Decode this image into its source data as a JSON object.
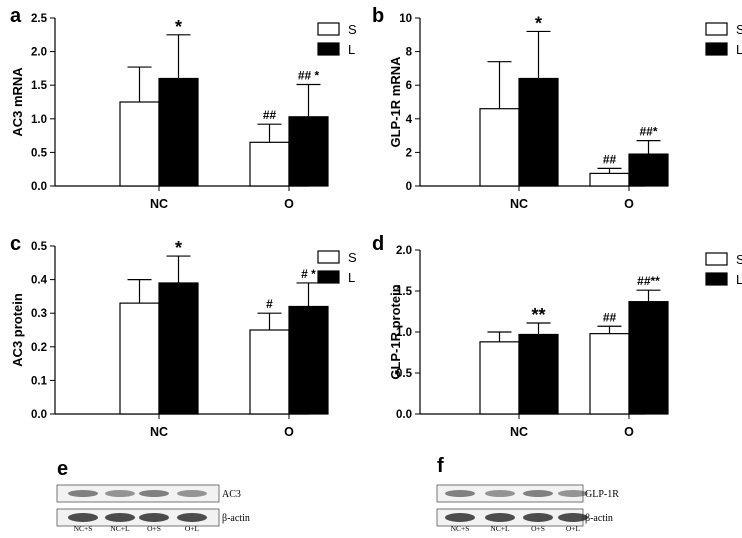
{
  "chart_data": [
    {
      "type": "bar",
      "panel": "a",
      "ylabel": "AC3 mRNA",
      "categories": [
        "NC",
        "O"
      ],
      "ylim": [
        0,
        2.5
      ],
      "yticks": [
        "0.0",
        "0.5",
        "1.0",
        "1.5",
        "2.0",
        "2.5"
      ],
      "series": [
        {
          "name": "S",
          "values": [
            1.25,
            0.65
          ],
          "errors": [
            0.52,
            0.27
          ],
          "annotations": [
            "",
            "##"
          ]
        },
        {
          "name": "L",
          "values": [
            1.6,
            1.03
          ],
          "errors": [
            0.65,
            0.48
          ],
          "annotations": [
            "*",
            "## *"
          ]
        }
      ],
      "legend": "top-right"
    },
    {
      "type": "bar",
      "panel": "b",
      "ylabel": "GLP-1R mRNA",
      "categories": [
        "NC",
        "O"
      ],
      "ylim": [
        0,
        10
      ],
      "yticks": [
        "0",
        "2",
        "4",
        "6",
        "8",
        "10"
      ],
      "series": [
        {
          "name": "S",
          "values": [
            4.6,
            0.75
          ],
          "errors": [
            2.8,
            0.3
          ],
          "annotations": [
            "",
            "##"
          ]
        },
        {
          "name": "L",
          "values": [
            6.4,
            1.9
          ],
          "errors": [
            2.8,
            0.8
          ],
          "annotations": [
            "*",
            "##*"
          ]
        }
      ],
      "legend": "top-right"
    },
    {
      "type": "bar",
      "panel": "c",
      "ylabel": "AC3 protein",
      "categories": [
        "NC",
        "O"
      ],
      "ylim": [
        0,
        0.5
      ],
      "yticks": [
        "0.0",
        "0.1",
        "0.2",
        "0.3",
        "0.4",
        "0.5"
      ],
      "series": [
        {
          "name": "S",
          "values": [
            0.33,
            0.25
          ],
          "errors": [
            0.07,
            0.05
          ],
          "annotations": [
            "",
            "#"
          ]
        },
        {
          "name": "L",
          "values": [
            0.39,
            0.32
          ],
          "errors": [
            0.08,
            0.07
          ],
          "annotations": [
            "*",
            "# *"
          ]
        }
      ],
      "legend": "top-right"
    },
    {
      "type": "bar",
      "panel": "d",
      "ylabel": "GLP-1R protein",
      "categories": [
        "NC",
        "O"
      ],
      "ylim": [
        0,
        2.0
      ],
      "yticks": [
        "0.0",
        "0.5",
        "1.0",
        "1.5",
        "2.0"
      ],
      "series": [
        {
          "name": "S",
          "values": [
            0.88,
            0.98
          ],
          "errors": [
            0.12,
            0.09
          ],
          "annotations": [
            "",
            "##"
          ]
        },
        {
          "name": "L",
          "values": [
            0.97,
            1.37
          ],
          "errors": [
            0.14,
            0.14
          ],
          "annotations": [
            "**",
            "##**"
          ]
        }
      ],
      "legend": "top-right"
    }
  ],
  "blots": [
    {
      "panel": "e",
      "rows": [
        "AC3",
        "β-actin"
      ],
      "lanes": [
        "NC+S",
        "NC+L",
        "O+S",
        "O+L"
      ]
    },
    {
      "panel": "f",
      "rows": [
        "GLP-1R",
        "β-actin"
      ],
      "lanes": [
        "NC+S",
        "NC+L",
        "O+S",
        "O+L"
      ]
    }
  ]
}
